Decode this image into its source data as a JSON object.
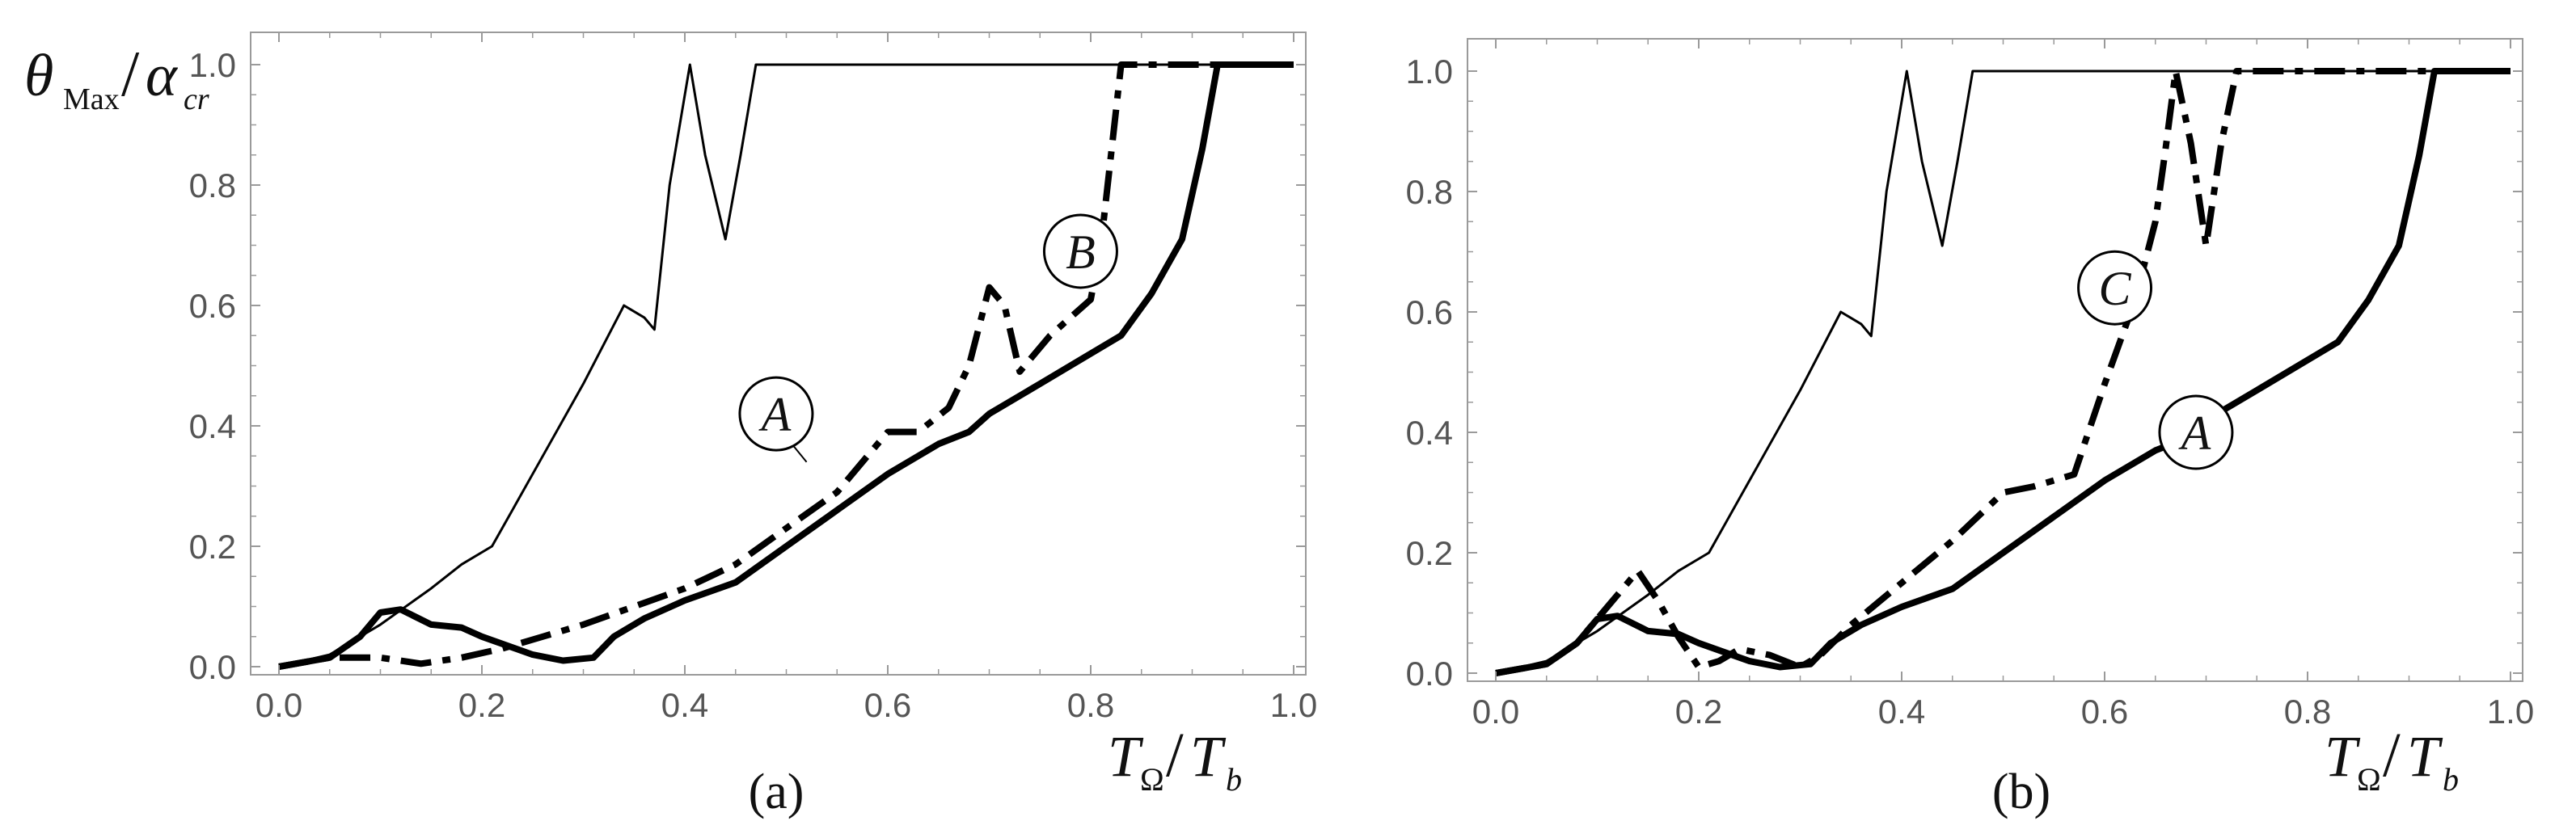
{
  "chart_data": [
    {
      "type": "line",
      "panel_label": "(a)",
      "xlabel_parts": {
        "num": "T",
        "num_sub": "Ω",
        "den": "T",
        "den_sub": "b"
      },
      "ylabel_parts": {
        "num": "θ",
        "num_sub": "Max",
        "den": "α",
        "den_sub": "cr"
      },
      "xlim": [
        0,
        1.0
      ],
      "ylim": [
        0,
        1.05
      ],
      "xticks": [
        "0.0",
        "0.2",
        "0.4",
        "0.6",
        "0.8",
        "1.0"
      ],
      "yticks": [
        "0.0",
        "0.2",
        "0.4",
        "0.6",
        "0.8",
        "1.0"
      ],
      "series": [
        {
          "name": "thin",
          "style": "thin-solid",
          "x": [
            0.0,
            0.05,
            0.1,
            0.15,
            0.18,
            0.21,
            0.23,
            0.26,
            0.3,
            0.34,
            0.36,
            0.37,
            0.385,
            0.405,
            0.42,
            0.44,
            0.455,
            0.47,
            1.0
          ],
          "y": [
            0.0,
            0.02,
            0.07,
            0.13,
            0.17,
            0.2,
            0.26,
            0.35,
            0.47,
            0.6,
            0.58,
            0.56,
            0.8,
            1.0,
            0.85,
            0.71,
            0.85,
            1.0,
            1.0
          ]
        },
        {
          "name": "A",
          "style": "thick-solid",
          "x": [
            0.0,
            0.05,
            0.08,
            0.1,
            0.12,
            0.15,
            0.18,
            0.2,
            0.25,
            0.28,
            0.31,
            0.33,
            0.36,
            0.4,
            0.45,
            0.5,
            0.55,
            0.6,
            0.65,
            0.68,
            0.7,
            0.75,
            0.8,
            0.83,
            0.86,
            0.89,
            0.91,
            0.925,
            1.0
          ],
          "y": [
            0.0,
            0.015,
            0.05,
            0.09,
            0.095,
            0.07,
            0.065,
            0.05,
            0.02,
            0.01,
            0.015,
            0.05,
            0.08,
            0.11,
            0.14,
            0.2,
            0.26,
            0.32,
            0.37,
            0.39,
            0.42,
            0.47,
            0.52,
            0.55,
            0.62,
            0.71,
            0.86,
            1.0,
            1.0
          ]
        },
        {
          "name": "B",
          "style": "dash",
          "x": [
            0.0,
            0.05,
            0.1,
            0.14,
            0.18,
            0.22,
            0.26,
            0.3,
            0.35,
            0.4,
            0.45,
            0.5,
            0.55,
            0.58,
            0.6,
            0.63,
            0.66,
            0.68,
            0.7,
            0.715,
            0.73,
            0.76,
            0.8,
            0.81,
            0.82,
            0.83,
            1.0
          ],
          "y": [
            0.0,
            0.015,
            0.015,
            0.005,
            0.015,
            0.03,
            0.05,
            0.07,
            0.1,
            0.13,
            0.17,
            0.23,
            0.29,
            0.35,
            0.39,
            0.39,
            0.43,
            0.5,
            0.63,
            0.6,
            0.49,
            0.55,
            0.61,
            0.7,
            0.85,
            1.0,
            1.0
          ]
        }
      ],
      "annotations": [
        {
          "label": "A",
          "target_series": "A",
          "x": 0.49,
          "y": 0.42,
          "arrow_to": [
            0.52,
            0.34
          ]
        },
        {
          "label": "B",
          "target_series": "B",
          "x": 0.79,
          "y": 0.69
        }
      ]
    },
    {
      "type": "line",
      "panel_label": "(b)",
      "xlabel_parts": {
        "num": "T",
        "num_sub": "Ω",
        "den": "T",
        "den_sub": "b"
      },
      "ylabel_parts": {
        "num": "",
        "num_sub": "",
        "den": "",
        "den_sub": ""
      },
      "xlim": [
        0,
        1.0
      ],
      "ylim": [
        0,
        1.05
      ],
      "xticks": [
        "0.0",
        "0.2",
        "0.4",
        "0.6",
        "0.8",
        "1.0"
      ],
      "yticks": [
        "0.0",
        "0.2",
        "0.4",
        "0.6",
        "0.8",
        "1.0"
      ],
      "series": [
        {
          "name": "thin",
          "style": "thin-solid",
          "x": [
            0.0,
            0.05,
            0.1,
            0.15,
            0.18,
            0.21,
            0.23,
            0.26,
            0.3,
            0.34,
            0.36,
            0.37,
            0.385,
            0.405,
            0.42,
            0.44,
            0.455,
            0.47,
            1.0
          ],
          "y": [
            0.0,
            0.02,
            0.07,
            0.13,
            0.17,
            0.2,
            0.26,
            0.35,
            0.47,
            0.6,
            0.58,
            0.56,
            0.8,
            1.0,
            0.85,
            0.71,
            0.85,
            1.0,
            1.0
          ]
        },
        {
          "name": "A",
          "style": "thick-solid",
          "x": [
            0.0,
            0.05,
            0.08,
            0.1,
            0.12,
            0.15,
            0.18,
            0.2,
            0.25,
            0.28,
            0.31,
            0.33,
            0.36,
            0.4,
            0.45,
            0.5,
            0.55,
            0.6,
            0.65,
            0.68,
            0.7,
            0.75,
            0.8,
            0.83,
            0.86,
            0.89,
            0.91,
            0.925,
            1.0
          ],
          "y": [
            0.0,
            0.015,
            0.05,
            0.09,
            0.095,
            0.07,
            0.065,
            0.05,
            0.02,
            0.01,
            0.015,
            0.05,
            0.08,
            0.11,
            0.14,
            0.2,
            0.26,
            0.32,
            0.37,
            0.39,
            0.42,
            0.47,
            0.52,
            0.55,
            0.62,
            0.71,
            0.86,
            1.0,
            1.0
          ]
        },
        {
          "name": "C",
          "style": "dash",
          "x": [
            0.0,
            0.05,
            0.08,
            0.11,
            0.14,
            0.16,
            0.18,
            0.2,
            0.22,
            0.24,
            0.27,
            0.3,
            0.32,
            0.35,
            0.4,
            0.45,
            0.5,
            0.53,
            0.57,
            0.6,
            0.63,
            0.65,
            0.66,
            0.67,
            0.685,
            0.7,
            0.715,
            0.73,
            1.0
          ],
          "y": [
            0.0,
            0.015,
            0.05,
            0.11,
            0.17,
            0.12,
            0.06,
            0.01,
            0.02,
            0.04,
            0.03,
            0.01,
            0.03,
            0.08,
            0.15,
            0.22,
            0.3,
            0.31,
            0.33,
            0.48,
            0.62,
            0.75,
            0.87,
            1.0,
            0.88,
            0.71,
            0.88,
            1.0,
            1.0
          ]
        }
      ],
      "annotations": [
        {
          "label": "C",
          "target_series": "C",
          "x": 0.61,
          "y": 0.64
        },
        {
          "label": "A",
          "target_series": "A",
          "x": 0.69,
          "y": 0.4
        }
      ]
    }
  ]
}
